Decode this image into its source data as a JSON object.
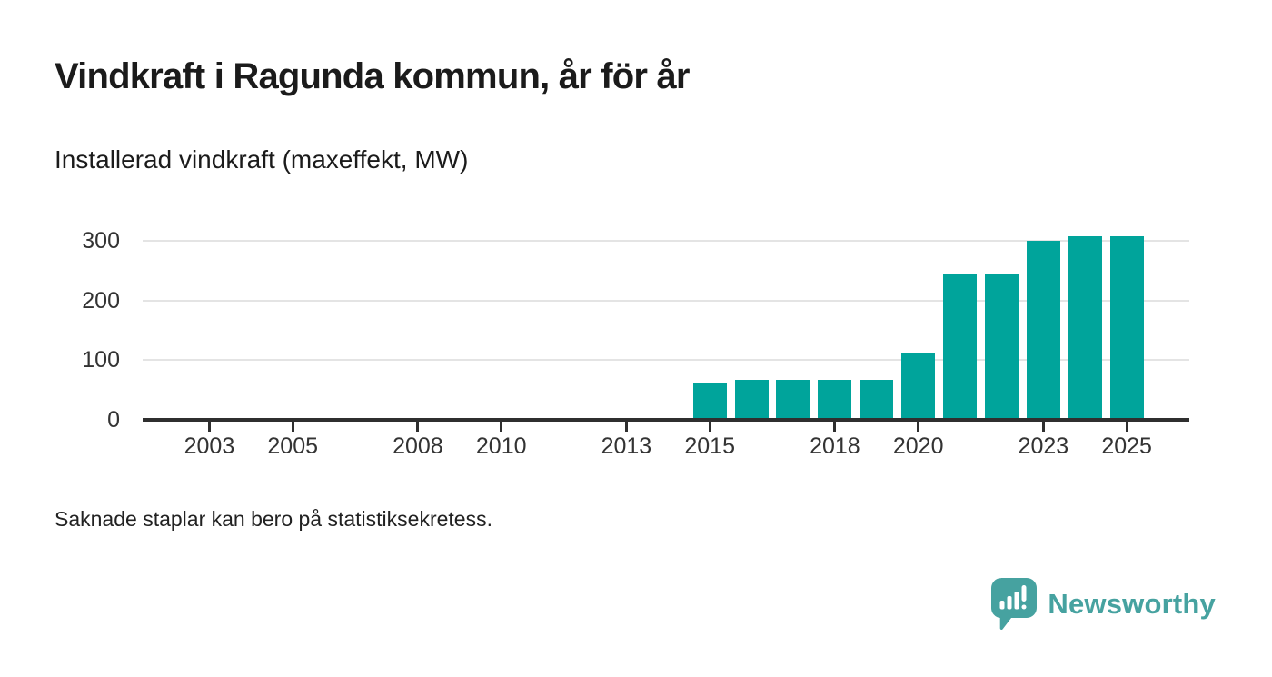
{
  "header": {
    "title": "Vindkraft i Ragunda kommun, år för år",
    "subtitle": "Installerad vindkraft (maxeffekt, MW)"
  },
  "chart_data": {
    "type": "bar",
    "title": "Vindkraft i Ragunda kommun, år för år",
    "subtitle": "Installerad vindkraft (maxeffekt, MW)",
    "unit": "MW",
    "x": [
      2015,
      2016,
      2017,
      2018,
      2019,
      2020,
      2021,
      2022,
      2023,
      2024,
      2025
    ],
    "values": [
      60,
      67,
      67,
      67,
      67,
      110,
      243,
      243,
      300,
      308,
      308
    ],
    "xlim": [
      2001.4,
      2026.5
    ],
    "ylim": [
      0,
      320
    ],
    "x_tick_labels": [
      "2003",
      "2005",
      "2008",
      "2010",
      "2013",
      "2015",
      "2018",
      "2020",
      "2023",
      "2025"
    ],
    "y_tick_labels": [
      "0",
      "100",
      "200",
      "300"
    ],
    "grid": "horizontal-only",
    "legend": "none",
    "missing_years_before": 2015
  },
  "footnote": "Saknade staplar kan bero på statistiksekretess.",
  "branding": {
    "logo_text": "Newsworthy",
    "logo_icon": "bar-chart-speech-bubble-icon"
  },
  "colors": {
    "bar": "#00a49b",
    "axis": "#2f2f2f",
    "gridline": "#e4e4e4",
    "title_text": "#1b1b1b",
    "tick_text": "#333333",
    "logo": "#46a2a0",
    "background": "#ffffff"
  }
}
